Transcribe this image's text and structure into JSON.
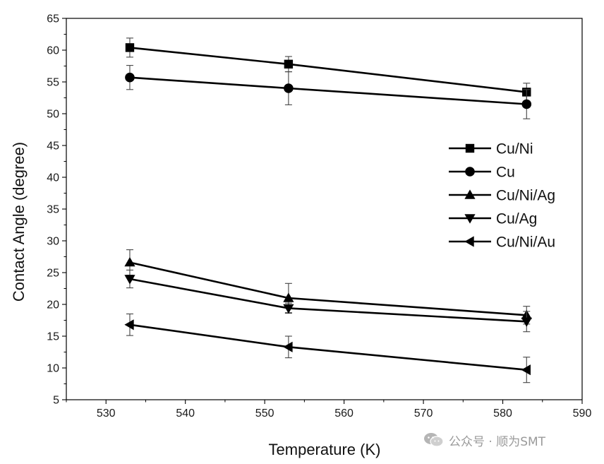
{
  "chart_data": {
    "type": "line",
    "title": "",
    "xlabel": "Temperature (K)",
    "ylabel": "Contact Angle (degree)",
    "xlim": [
      525,
      590
    ],
    "ylim": [
      5,
      65
    ],
    "xticks": [
      530,
      540,
      550,
      560,
      570,
      580,
      590
    ],
    "yticks": [
      5,
      10,
      15,
      20,
      25,
      30,
      35,
      40,
      45,
      50,
      55,
      60,
      65
    ],
    "x": [
      533,
      553,
      583
    ],
    "legend_position": "right-center",
    "series": [
      {
        "name": "Cu/Ni",
        "marker": "square",
        "values": [
          60.4,
          57.8,
          53.4
        ],
        "errors": [
          1.5,
          1.2,
          1.4
        ]
      },
      {
        "name": "Cu",
        "marker": "circle",
        "values": [
          55.7,
          54.0,
          51.5
        ],
        "errors": [
          1.9,
          2.6,
          2.3
        ]
      },
      {
        "name": "Cu/Ni/Ag",
        "marker": "triangle-up",
        "values": [
          26.6,
          21.0,
          18.3
        ],
        "errors": [
          2.0,
          2.3,
          1.4
        ]
      },
      {
        "name": "Cu/Ag",
        "marker": "triangle-down",
        "values": [
          24.0,
          19.4,
          17.3
        ],
        "errors": [
          1.4,
          0.8,
          1.6
        ]
      },
      {
        "name": "Cu/Ni/Au",
        "marker": "triangle-left",
        "values": [
          16.8,
          13.3,
          9.7
        ],
        "errors": [
          1.7,
          1.7,
          2.0
        ]
      }
    ]
  },
  "watermark": {
    "text": "公众号 · 顺为SMT",
    "icon": "wechat-icon"
  }
}
